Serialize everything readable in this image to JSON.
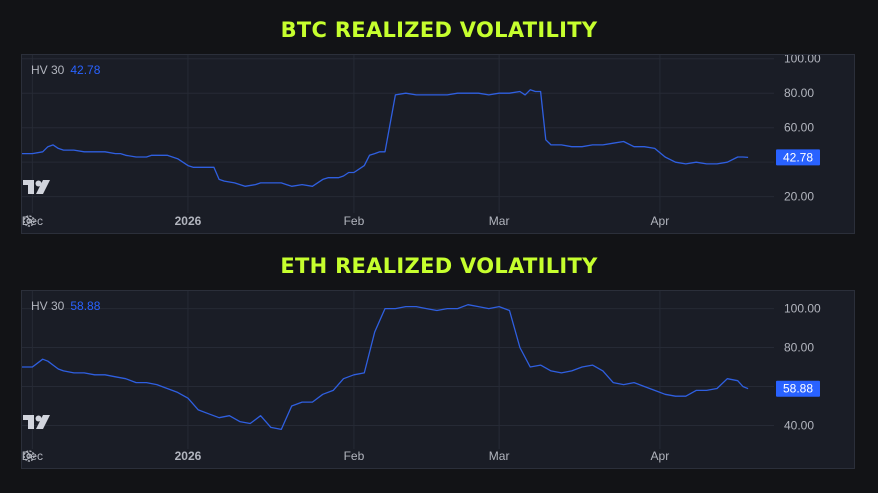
{
  "colors": {
    "title": "#c6ff2e",
    "line": "#2f5fe0",
    "tag_bg": "#2962ff",
    "grid": "#262a35",
    "text": "#b2b5be"
  },
  "icons": {
    "logo": "tradingview-logo-icon",
    "settings": "gear-icon"
  },
  "chart_data": [
    {
      "type": "line",
      "title": "BTC REALIZED VOLATILITY",
      "indicator": "HV 30",
      "last_value": "42.78",
      "x_ticks": [
        "Dec",
        "2026",
        "Feb",
        "Mar",
        "Apr"
      ],
      "x_tick_days": [
        0,
        30,
        62,
        90,
        121
      ],
      "x_tick_bold": [
        false,
        true,
        false,
        false,
        false
      ],
      "y_ticks": [
        20,
        40,
        60,
        80,
        100
      ],
      "y_tick_labels": [
        "20.00",
        "",
        "60.00",
        "80.00",
        "100.00"
      ],
      "ylim": [
        14,
        101
      ],
      "xlim": [
        -2,
        143
      ],
      "x_days": [
        -2,
        0,
        2,
        3,
        4,
        5,
        6,
        8,
        10,
        12,
        14,
        16,
        17,
        18,
        20,
        22,
        23,
        24,
        26,
        28,
        30,
        31,
        32,
        34,
        35,
        36,
        37,
        39,
        41,
        43,
        44,
        46,
        48,
        49,
        50,
        52,
        54,
        56,
        57,
        58,
        59,
        60,
        61,
        62,
        63,
        64,
        65,
        66,
        67,
        68,
        70,
        72,
        74,
        76,
        78,
        80,
        82,
        84,
        86,
        88,
        90,
        91,
        92,
        94,
        95,
        96,
        97,
        98,
        99,
        100,
        101,
        102,
        104,
        106,
        108,
        110,
        112,
        114,
        116,
        118,
        120,
        122,
        124,
        126,
        128,
        130,
        132,
        134,
        136,
        137,
        138
      ],
      "series": [
        {
          "values": [
            45,
            45,
            46,
            49,
            50,
            48,
            47,
            47,
            46,
            46,
            46,
            45,
            45,
            44,
            43,
            43,
            44,
            44,
            44,
            42,
            38,
            37,
            37,
            37,
            37,
            30,
            29,
            28,
            26,
            27,
            28,
            28,
            28,
            27,
            26,
            27,
            26,
            30,
            31,
            31,
            31,
            32,
            34,
            34,
            36,
            38,
            44,
            45,
            46,
            46,
            79,
            80,
            79,
            79,
            79,
            79,
            80,
            80,
            80,
            79,
            80,
            80,
            80,
            81,
            79,
            82,
            81,
            81,
            53,
            50,
            50,
            50,
            49,
            49,
            50,
            50,
            51,
            52,
            49,
            49,
            48,
            43,
            40,
            39,
            40,
            39,
            39,
            40,
            43,
            43,
            42.78
          ]
        }
      ]
    },
    {
      "type": "line",
      "title": "ETH REALIZED VOLATILITY",
      "indicator": "HV 30",
      "last_value": "58.88",
      "x_ticks": [
        "Dec",
        "2026",
        "Feb",
        "Mar",
        "Apr"
      ],
      "x_tick_days": [
        0,
        30,
        62,
        90,
        121
      ],
      "x_tick_bold": [
        false,
        true,
        false,
        false,
        false
      ],
      "y_ticks": [
        40,
        60,
        80,
        100
      ],
      "y_tick_labels": [
        "40.00",
        "",
        "80.00",
        "100.00"
      ],
      "ylim": [
        31,
        108
      ],
      "xlim": [
        -2,
        143
      ],
      "x_days": [
        -2,
        0,
        2,
        3,
        4,
        5,
        6,
        8,
        10,
        12,
        14,
        16,
        18,
        20,
        22,
        24,
        26,
        28,
        30,
        32,
        34,
        36,
        38,
        40,
        42,
        44,
        46,
        48,
        50,
        52,
        54,
        56,
        58,
        60,
        62,
        64,
        66,
        68,
        70,
        72,
        74,
        76,
        78,
        80,
        82,
        84,
        86,
        88,
        90,
        92,
        94,
        96,
        98,
        100,
        102,
        104,
        106,
        108,
        110,
        112,
        114,
        116,
        118,
        120,
        122,
        124,
        126,
        128,
        130,
        132,
        134,
        136,
        137,
        138
      ],
      "series": [
        {
          "values": [
            70,
            70,
            74,
            73,
            71,
            69,
            68,
            67,
            67,
            66,
            66,
            65,
            64,
            62,
            62,
            61,
            59,
            57,
            54,
            48,
            46,
            44,
            45,
            42,
            41,
            45,
            39,
            38,
            50,
            52,
            52,
            56,
            58,
            64,
            66,
            67,
            88,
            100,
            100,
            101,
            101,
            100,
            99,
            100,
            100,
            102,
            101,
            100,
            101,
            99,
            80,
            70,
            71,
            68,
            67,
            68,
            70,
            71,
            68,
            62,
            61,
            62,
            60,
            58,
            56,
            55,
            55,
            58,
            58,
            59,
            64,
            63,
            60,
            58.88
          ]
        }
      ]
    }
  ]
}
